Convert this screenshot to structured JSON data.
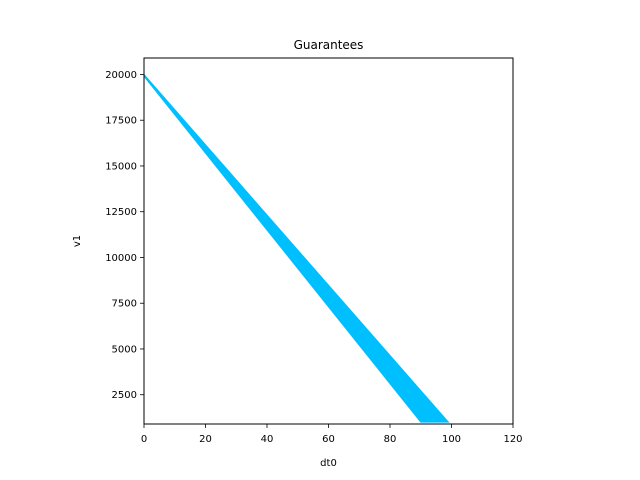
{
  "chart_data": {
    "type": "area",
    "title": "Guarantees",
    "xlabel": "dt0",
    "ylabel": "v1",
    "xlim": [
      0,
      120
    ],
    "ylim": [
      900,
      20900
    ],
    "xticks": [
      0,
      20,
      40,
      60,
      80,
      100,
      120
    ],
    "yticks": [
      2500,
      5000,
      7500,
      10000,
      12500,
      15000,
      17500,
      20000
    ],
    "grid": false,
    "fill_color": "#00BFFF",
    "series": [
      {
        "values": [
          {
            "x": 0,
            "y": 20000
          },
          {
            "x": 99,
            "y": 1000
          },
          {
            "x": 90,
            "y": 1000
          },
          {
            "x": 0,
            "y": 19900
          }
        ]
      }
    ]
  }
}
